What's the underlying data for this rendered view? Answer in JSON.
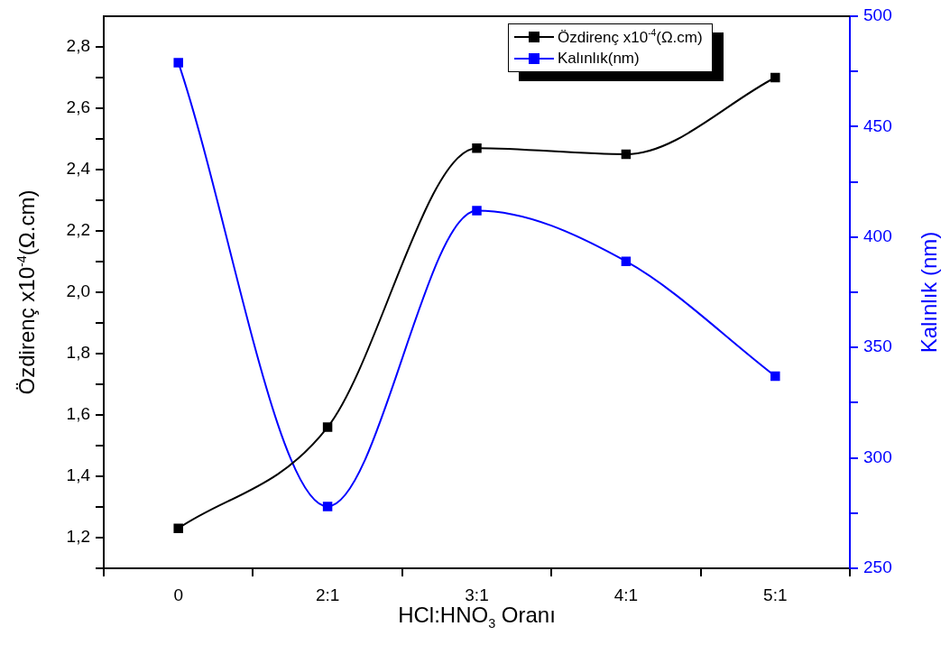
{
  "chart_data": {
    "type": "line",
    "categories": [
      "0",
      "2:1",
      "3:1",
      "4:1",
      "5:1"
    ],
    "xlabel": "HCl:HNO$_{3}$ Oranı",
    "ylabel": "Özdirenç x10$^{-4}$(Ω.cm)",
    "y2label": "Kalınlık (nm)",
    "series": [
      {
        "name": "Özdirenç x10$^{-4}$(Ω.cm)",
        "color": "#000000",
        "values": [
          1.23,
          1.56,
          2.47,
          2.45,
          2.7
        ]
      },
      {
        "name": "Kalınlık(nm)",
        "color": "#0000ff",
        "axis": "y2",
        "values": [
          479,
          278,
          412,
          389,
          337
        ]
      }
    ],
    "ylim": [
      1.1,
      2.9
    ],
    "yticks": [
      {
        "value": 1.1,
        "label": null
      },
      {
        "value": 1.2,
        "label": "1,2"
      },
      {
        "value": 1.3,
        "label": null
      },
      {
        "value": 1.4,
        "label": "1,4"
      },
      {
        "value": 1.5,
        "label": null
      },
      {
        "value": 1.6,
        "label": "1,6"
      },
      {
        "value": 1.7,
        "label": null
      },
      {
        "value": 1.8,
        "label": "1,8"
      },
      {
        "value": 1.9,
        "label": null
      },
      {
        "value": 2.0,
        "label": "2,0"
      },
      {
        "value": 2.1,
        "label": null
      },
      {
        "value": 2.2,
        "label": "2,2"
      },
      {
        "value": 2.3,
        "label": null
      },
      {
        "value": 2.4,
        "label": "2,4"
      },
      {
        "value": 2.5,
        "label": null
      },
      {
        "value": 2.6,
        "label": "2,6"
      },
      {
        "value": 2.7,
        "label": null
      },
      {
        "value": 2.8,
        "label": "2,8"
      }
    ],
    "y2lim": [
      250,
      500
    ],
    "y2ticks": [
      250,
      {
        "value": 275,
        "label": null
      },
      300,
      {
        "value": 325,
        "label": null
      },
      350,
      {
        "value": 375,
        "label": null
      },
      400,
      {
        "value": 425,
        "label": null
      },
      450,
      {
        "value": 475,
        "label": null
      },
      500
    ],
    "grid": false,
    "legend": "top right",
    "marker": "square",
    "line_style": "solid"
  }
}
